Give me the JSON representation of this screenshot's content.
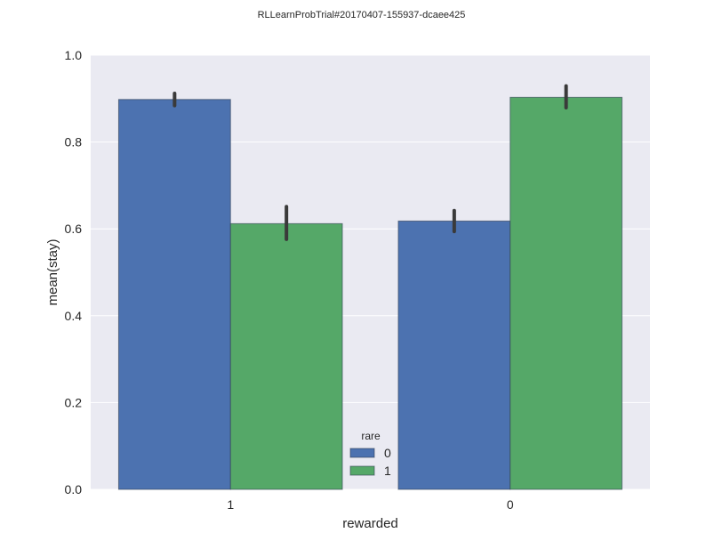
{
  "title": "RLLearnProbTrial#20170407-155937-dcaee425",
  "colors": {
    "plot_background": "#EAEAF2",
    "grid": "#FFFFFF",
    "text": "#262626",
    "errorbar": "#3A3A3A",
    "series": [
      "#4C72B0",
      "#55A868"
    ]
  },
  "chart_data": {
    "type": "bar",
    "title": "RLLearnProbTrial#20170407-155937-dcaee425",
    "xlabel": "rewarded",
    "ylabel": "mean(stay)",
    "categories": [
      "1",
      "0"
    ],
    "ylim": [
      0.0,
      1.0
    ],
    "yticks": [
      "0.0",
      "0.2",
      "0.4",
      "0.6",
      "0.8",
      "1.0"
    ],
    "grid": true,
    "legend": {
      "title": "rare",
      "placement": "bottom-center"
    },
    "series": [
      {
        "name": "0",
        "values": [
          0.898,
          0.618
        ],
        "ci_low": [
          0.884,
          0.594
        ],
        "ci_high": [
          0.912,
          0.642
        ]
      },
      {
        "name": "1",
        "values": [
          0.612,
          0.903
        ],
        "ci_low": [
          0.576,
          0.879
        ],
        "ci_high": [
          0.651,
          0.929
        ]
      }
    ]
  }
}
